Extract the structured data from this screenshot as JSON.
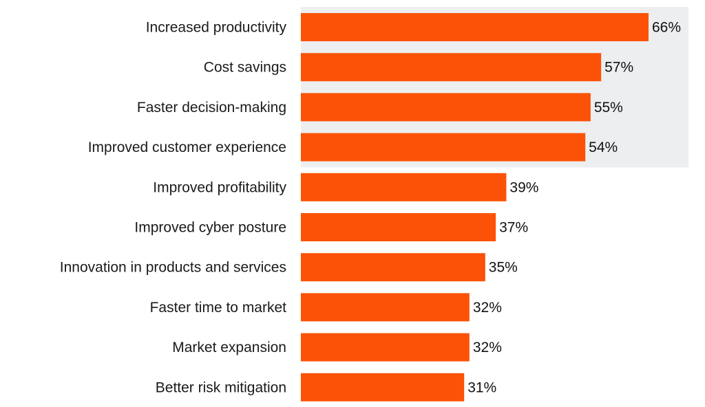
{
  "chart_data": {
    "type": "bar",
    "orientation": "horizontal",
    "title": "",
    "xlabel": "",
    "ylabel": "",
    "categories": [
      "Increased productivity",
      "Cost savings",
      "Faster decision-making",
      "Improved customer experience",
      "Improved profitability",
      "Improved cyber posture",
      "Innovation in products and services",
      "Faster time to market",
      "Market expansion",
      "Better risk mitigation"
    ],
    "values": [
      66,
      57,
      55,
      54,
      39,
      37,
      35,
      32,
      32,
      31
    ],
    "value_labels": [
      "66%",
      "57%",
      "55%",
      "54%",
      "39%",
      "37%",
      "35%",
      "32%",
      "32%",
      "31%"
    ],
    "unit": "%",
    "xlim": [
      0,
      66
    ],
    "grid": false,
    "legend": "none",
    "highlighted_categories": [
      0,
      1,
      2,
      3
    ],
    "colors": {
      "bar": "#fc5207",
      "highlight_band": "#eceef0"
    }
  }
}
